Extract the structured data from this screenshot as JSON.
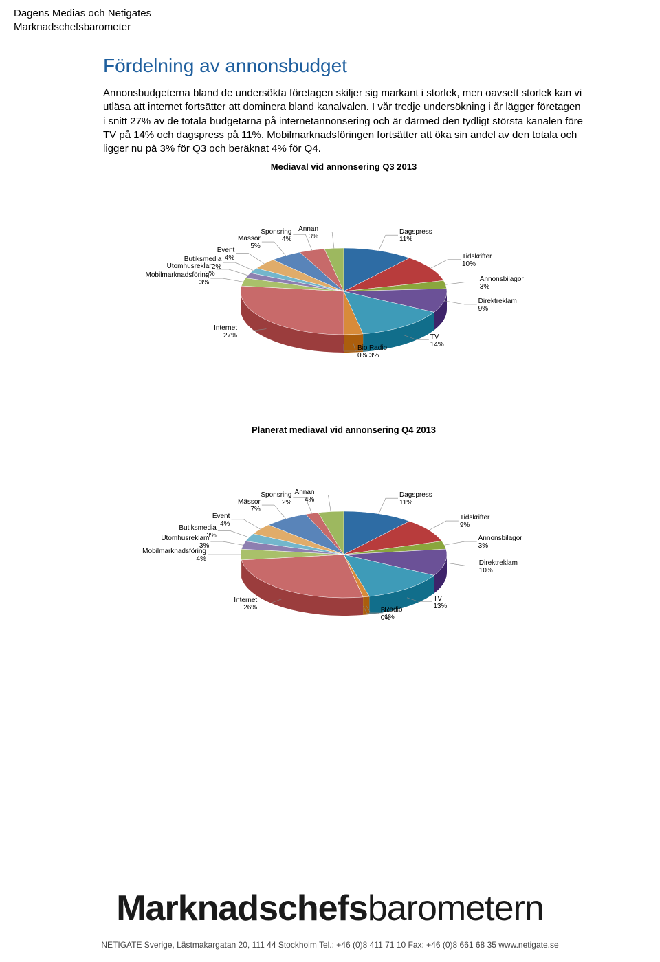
{
  "header": {
    "line1": "Dagens Medias och Netigates",
    "line2": "Marknadschefsbarometer"
  },
  "title": {
    "text": "Fördelning av annonsbudget",
    "color": "#1f5f9e",
    "fontsize": 28
  },
  "body": "Annonsbudgeterna bland de undersökta företagen skiljer sig markant i storlek, men oavsett storlek kan vi utläsa att internet fortsätter att dominera bland kanalvalen. I vår tredje undersökning i år lägger företagen i snitt 27% av de totala budgetarna på internetannonsering och är därmed den tydligt största kanalen före TV på 14% och dagspress på 11%. Mobilmarknadsföringen fortsätter att öka sin andel av den totala och ligger nu på 3% för Q3 och beräknat 4% för Q4.",
  "chart1": {
    "title": "Mediaval vid annonsering Q3 2013",
    "type": "pie-3d",
    "radius": 150,
    "tilt": 0.42,
    "depth": 26,
    "background_color": "#ffffff",
    "label_fontsize": 10,
    "slices": [
      {
        "label": "Dagspress",
        "value": 11,
        "color": "#2e6ca4"
      },
      {
        "label": "Tidskrifter",
        "value": 10,
        "color": "#b83c3c"
      },
      {
        "label": "Annonsbilagor",
        "value": 3,
        "color": "#8aa63d"
      },
      {
        "label": "Direktreklam",
        "value": 9,
        "color": "#6b5197"
      },
      {
        "label": "TV",
        "value": 14,
        "color": "#3e9bb8"
      },
      {
        "label": "Radio",
        "value": 3,
        "color": "#d88b3a"
      },
      {
        "label": "Bio",
        "value": 0,
        "color": "#9aa7c7"
      },
      {
        "label": "Internet",
        "value": 27,
        "color": "#c86a6a"
      },
      {
        "label": "Mobilmarknadsföring",
        "value": 3,
        "color": "#a9c06a"
      },
      {
        "label": "Utomhusreklam",
        "value": 2,
        "color": "#8d7fb0"
      },
      {
        "label": "Butiksmedia",
        "value": 2,
        "color": "#73b6cc"
      },
      {
        "label": "Event",
        "value": 4,
        "color": "#e0ac6a"
      },
      {
        "label": "Mässor",
        "value": 5,
        "color": "#5984b9"
      },
      {
        "label": "Sponsring",
        "value": 4,
        "color": "#c76a6a"
      },
      {
        "label": "Annan",
        "value": 3,
        "color": "#9db85f"
      }
    ]
  },
  "chart2": {
    "title": "Planerat mediaval vid annonsering Q4 2013",
    "type": "pie-3d",
    "radius": 150,
    "tilt": 0.42,
    "depth": 26,
    "background_color": "#ffffff",
    "label_fontsize": 10,
    "slices": [
      {
        "label": "Dagspress",
        "value": 11,
        "color": "#2e6ca4"
      },
      {
        "label": "Tidskrifter",
        "value": 9,
        "color": "#b83c3c"
      },
      {
        "label": "Annonsbilagor",
        "value": 3,
        "color": "#8aa63d"
      },
      {
        "label": "Direktreklam",
        "value": 10,
        "color": "#6b5197"
      },
      {
        "label": "TV",
        "value": 13,
        "color": "#3e9bb8"
      },
      {
        "label": "Radio",
        "value": 1,
        "color": "#d88b3a"
      },
      {
        "label": "Bio",
        "value": 0,
        "color": "#9aa7c7"
      },
      {
        "label": "Internet",
        "value": 26,
        "color": "#c86a6a"
      },
      {
        "label": "Mobilmarknadsföring",
        "value": 4,
        "color": "#a9c06a"
      },
      {
        "label": "Utomhusreklam",
        "value": 3,
        "color": "#8d7fb0"
      },
      {
        "label": "Butiksmedia",
        "value": 3,
        "color": "#73b6cc"
      },
      {
        "label": "Event",
        "value": 4,
        "color": "#e0ac6a"
      },
      {
        "label": "Mässor",
        "value": 7,
        "color": "#5984b9"
      },
      {
        "label": "Sponsring",
        "value": 2,
        "color": "#c76a6a"
      },
      {
        "label": "Annan",
        "value": 4,
        "color": "#9db85f"
      }
    ]
  },
  "logo": {
    "part1": "Marknadschefs",
    "part2": "barometern",
    "color": "#1a1a1a"
  },
  "footer": {
    "text": "NETIGATE Sverige, Lästmakargatan 20, 111 44 Stockholm  Tel.: +46 (0)8 411 71 10  Fax: +46 (0)8 661 68 35  www.netigate.se"
  }
}
